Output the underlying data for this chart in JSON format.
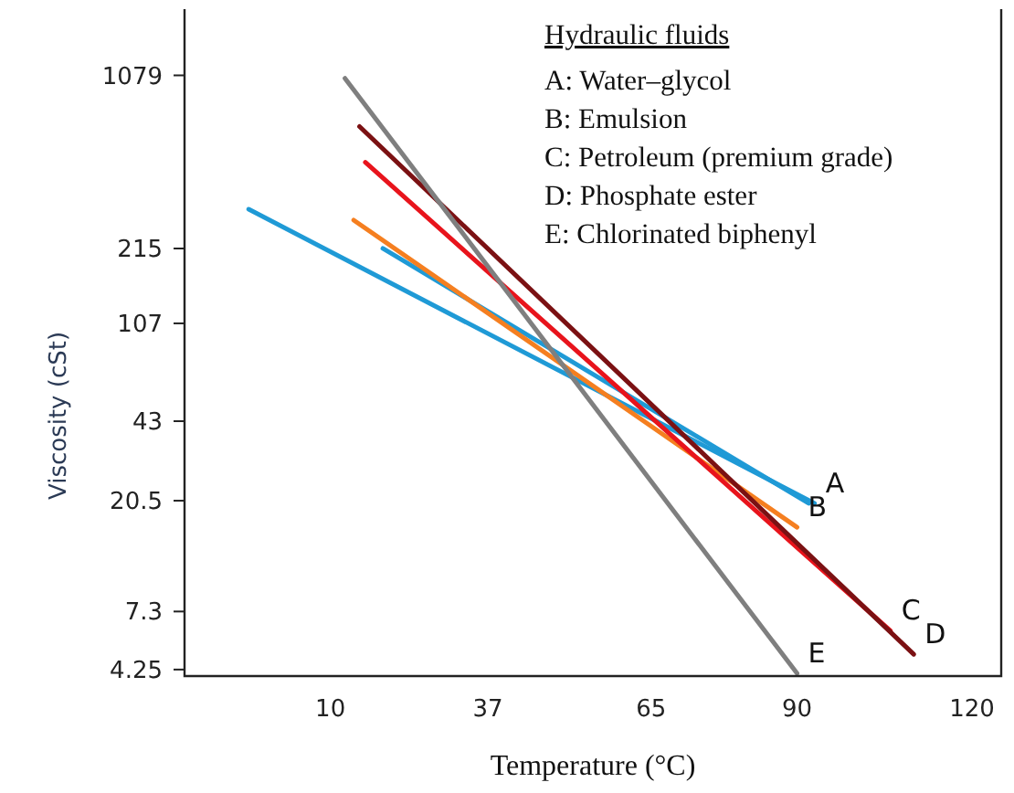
{
  "chart_data": {
    "type": "line",
    "xlabel": "Temperature (°C)",
    "ylabel": "Viscosity (cSt)",
    "log": "y",
    "xlim": [
      -15,
      125
    ],
    "xticks": [
      10,
      37,
      65,
      90,
      120
    ],
    "ylim": [
      4,
      2000
    ],
    "yticks": [
      4.25,
      7.3,
      20.5,
      43,
      107,
      215,
      1079
    ],
    "grid": false,
    "marker": "none",
    "line_style": "solid",
    "annotations": [
      "Hydraulic fluids",
      "A: Water–glycol",
      "B: Emulsion",
      "C: Petroleum (premium grade)",
      "D: Phosphate ester",
      "E: Chlorinated biphenyl"
    ],
    "series": [
      {
        "name": "A",
        "color": "#1f9ad6",
        "x": [
          -4,
          93
        ],
        "values": [
          310,
          20
        ]
      },
      {
        "color": "#1f9ad6",
        "x": [
          19,
          92
        ],
        "values": [
          215,
          20
        ]
      },
      {
        "name": "B",
        "color": "#f57f20",
        "x": [
          14,
          90
        ],
        "values": [
          280,
          16
        ]
      },
      {
        "name": "C",
        "color": "#e8141c",
        "x": [
          16,
          106
        ],
        "values": [
          480,
          6.1
        ]
      },
      {
        "name": "D",
        "color": "#7b1113",
        "x": [
          15,
          110
        ],
        "values": [
          670,
          4.9
        ]
      },
      {
        "name": "E",
        "color": "#7f7f7f",
        "x": [
          12.5,
          90
        ],
        "values": [
          1050,
          4.1
        ]
      }
    ]
  }
}
